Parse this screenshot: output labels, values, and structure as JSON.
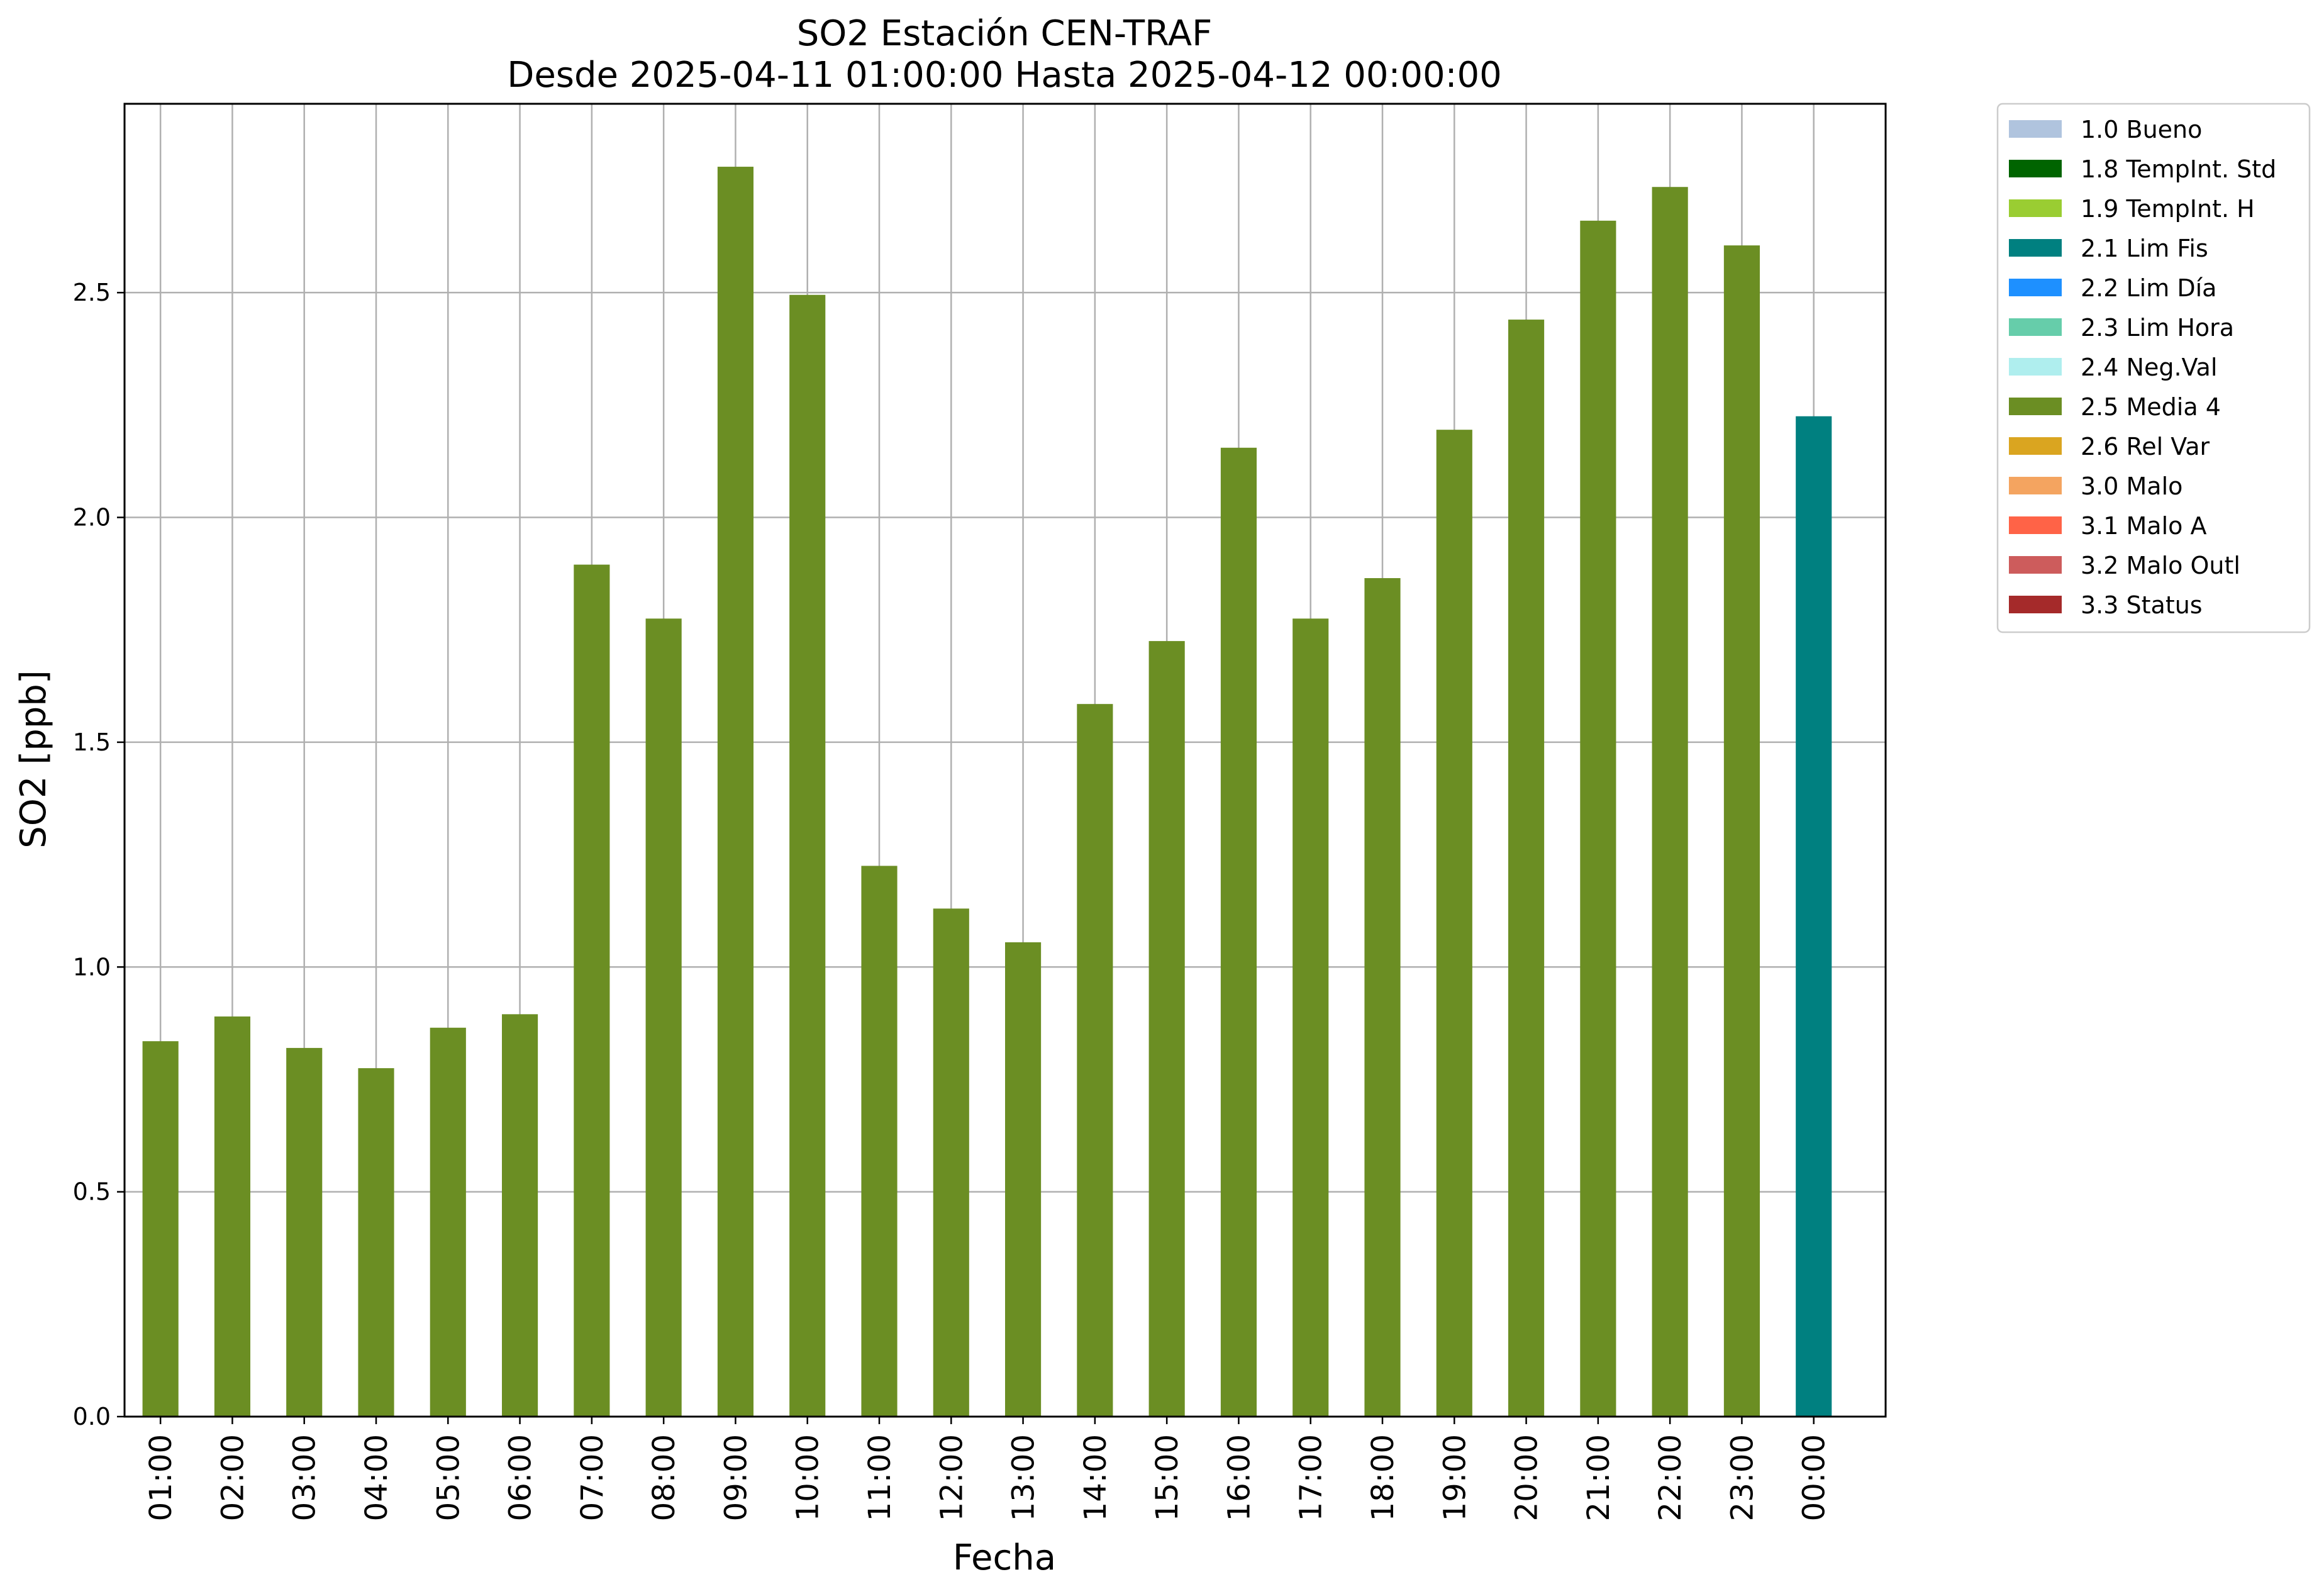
{
  "chart_data": {
    "type": "bar",
    "title": "SO2 Estación CEN-TRAF",
    "subtitle": "Desde 2025-04-11 01:00:00 Hasta 2025-04-12 00:00:00",
    "xlabel": "Fecha",
    "ylabel": "SO2 [ppb]",
    "ylim": [
      0,
      2.92
    ],
    "yticks": [
      "0.0",
      "0.5",
      "1.0",
      "1.5",
      "2.0",
      "2.5"
    ],
    "grid": true,
    "legend_position": "outside-right-top",
    "categories": [
      "01:00",
      "02:00",
      "03:00",
      "04:00",
      "05:00",
      "06:00",
      "07:00",
      "08:00",
      "09:00",
      "10:00",
      "11:00",
      "12:00",
      "13:00",
      "14:00",
      "15:00",
      "16:00",
      "17:00",
      "18:00",
      "19:00",
      "20:00",
      "21:00",
      "22:00",
      "23:00",
      "00:00"
    ],
    "values": [
      0.835,
      0.89,
      0.82,
      0.775,
      0.865,
      0.895,
      1.895,
      1.775,
      2.78,
      2.495,
      1.225,
      1.13,
      1.055,
      1.585,
      1.725,
      2.155,
      1.775,
      1.865,
      2.195,
      2.44,
      2.66,
      2.735,
      2.605,
      2.225
    ],
    "bar_flags": [
      "2.5 Media 4",
      "2.5 Media 4",
      "2.5 Media 4",
      "2.5 Media 4",
      "2.5 Media 4",
      "2.5 Media 4",
      "2.5 Media 4",
      "2.5 Media 4",
      "2.5 Media 4",
      "2.5 Media 4",
      "2.5 Media 4",
      "2.5 Media 4",
      "2.5 Media 4",
      "2.5 Media 4",
      "2.5 Media 4",
      "2.5 Media 4",
      "2.5 Media 4",
      "2.5 Media 4",
      "2.5 Media 4",
      "2.5 Media 4",
      "2.5 Media 4",
      "2.5 Media 4",
      "2.5 Media 4",
      "2.1 Lim Fis"
    ],
    "legend": [
      {
        "label": "1.0 Bueno",
        "color": "#b0c4de"
      },
      {
        "label": "1.8 TempInt. Std",
        "color": "#006400"
      },
      {
        "label": "1.9 TempInt. H",
        "color": "#9acd32"
      },
      {
        "label": "2.1 Lim Fis",
        "color": "#008080"
      },
      {
        "label": "2.2 Lim Día",
        "color": "#1e90ff"
      },
      {
        "label": "2.3 Lim Hora",
        "color": "#66cdaa"
      },
      {
        "label": "2.4 Neg.Val",
        "color": "#afeeee"
      },
      {
        "label": "2.5 Media 4",
        "color": "#6b8e23"
      },
      {
        "label": "2.6 Rel Var",
        "color": "#daa520"
      },
      {
        "label": "3.0 Malo",
        "color": "#f4a460"
      },
      {
        "label": "3.1 Malo A",
        "color": "#ff6347"
      },
      {
        "label": "3.2 Malo Outl",
        "color": "#cd5c5c"
      },
      {
        "label": "3.3 Status",
        "color": "#a52a2a"
      }
    ]
  }
}
